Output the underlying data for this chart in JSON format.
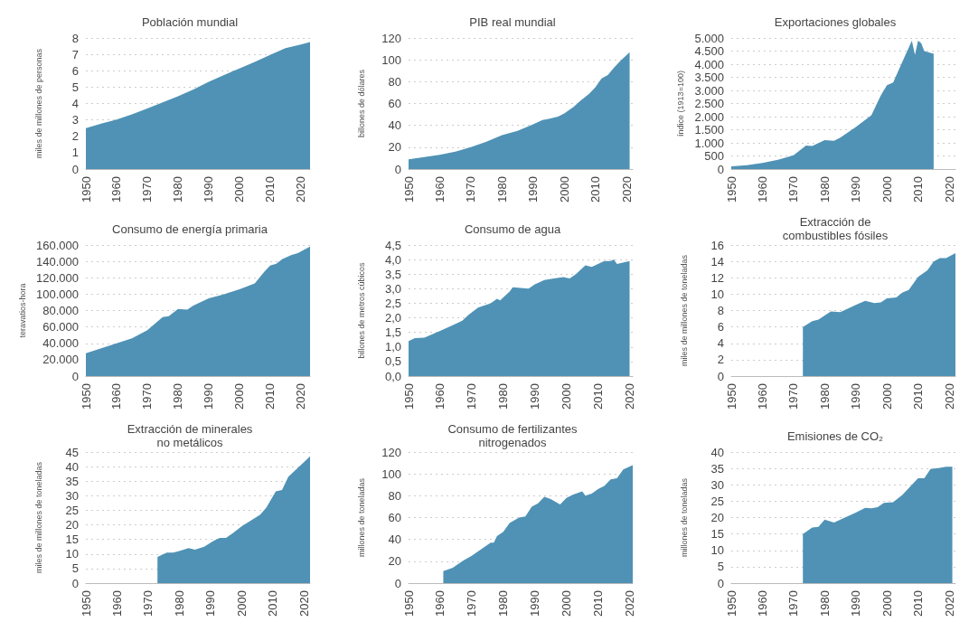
{
  "chart_data": [
    {
      "type": "area",
      "title": "Población mundial",
      "ylabel": "miles de millones de personas",
      "color": "#4f92b5",
      "grid": "y",
      "x": [
        1950,
        1955,
        1960,
        1965,
        1970,
        1975,
        1980,
        1985,
        1990,
        1995,
        2000,
        2005,
        2010,
        2015,
        2020,
        2023
      ],
      "values": [
        2.5,
        2.77,
        3.02,
        3.34,
        3.7,
        4.07,
        4.44,
        4.86,
        5.33,
        5.74,
        6.14,
        6.54,
        6.96,
        7.38,
        7.6,
        7.75
      ],
      "xlim": [
        1950,
        2023
      ],
      "xticks": [
        1950,
        1960,
        1970,
        1980,
        1990,
        2000,
        2010,
        2020
      ],
      "ylim": [
        0,
        8
      ],
      "yticks": [
        0,
        1,
        2,
        3,
        4,
        5,
        6,
        7,
        8
      ]
    },
    {
      "type": "area",
      "title": "PIB real mundial",
      "ylabel": "billones de dólares",
      "color": "#4f92b5",
      "grid": "y",
      "x": [
        1950,
        1955,
        1960,
        1965,
        1970,
        1975,
        1980,
        1985,
        1990,
        1993,
        1995,
        1998,
        2000,
        2003,
        2005,
        2008,
        2010,
        2012,
        2014,
        2016,
        2018,
        2021
      ],
      "values": [
        9,
        11,
        13,
        16,
        20,
        25,
        31,
        35,
        41,
        45,
        46,
        48,
        51,
        57,
        62,
        69,
        75,
        83,
        86,
        93,
        99,
        107
      ],
      "xlim": [
        1950,
        2022
      ],
      "xticks": [
        1950,
        1960,
        1970,
        1980,
        1990,
        2000,
        2010,
        2020
      ],
      "ylim": [
        0,
        120
      ],
      "yticks": [
        0,
        20,
        40,
        60,
        80,
        100,
        120
      ]
    },
    {
      "type": "area",
      "title": "Exportaciones globales",
      "ylabel": "índice (1913=100)",
      "color": "#4f92b5",
      "grid": "y",
      "x": [
        1950,
        1955,
        1960,
        1965,
        1970,
        1974,
        1976,
        1980,
        1983,
        1985,
        1990,
        1995,
        1998,
        2000,
        2002,
        2005,
        2008,
        2009,
        2010,
        2011,
        2012,
        2015
      ],
      "values": [
        100,
        150,
        230,
        350,
        530,
        900,
        880,
        1100,
        1080,
        1200,
        1600,
        2050,
        2800,
        3200,
        3300,
        4100,
        4900,
        4350,
        4900,
        4800,
        4500,
        4400
      ],
      "xlim": [
        1950,
        2022
      ],
      "xticks": [
        1950,
        1960,
        1970,
        1980,
        1990,
        2000,
        2010,
        2020
      ],
      "ylim": [
        0,
        5000
      ],
      "yticks": [
        0,
        500,
        {
          "value": 1000,
          "label": "1.000"
        },
        {
          "value": 1500,
          "label": "1.500"
        },
        {
          "value": 2000,
          "label": "2.000"
        },
        {
          "value": 2500,
          "label": "2.500"
        },
        {
          "value": 3000,
          "label": "3.000"
        },
        {
          "value": 3500,
          "label": "3.500"
        },
        {
          "value": 4000,
          "label": "4.000"
        },
        {
          "value": 4500,
          "label": "4.500"
        },
        {
          "value": 5000,
          "label": "5.000"
        }
      ]
    },
    {
      "type": "area",
      "title": "Consumo de energía primaria",
      "ylabel": "teravatios-hora",
      "color": "#4f92b5",
      "grid": "y",
      "x": [
        1950,
        1955,
        1960,
        1965,
        1970,
        1975,
        1977,
        1980,
        1983,
        1985,
        1990,
        1995,
        2000,
        2005,
        2008,
        2010,
        2012,
        2014,
        2017,
        2019,
        2023
      ],
      "values": [
        28000,
        34000,
        40000,
        46000,
        56000,
        72000,
        73000,
        82000,
        81000,
        86000,
        95000,
        100000,
        106000,
        113000,
        127000,
        135000,
        137000,
        143000,
        148000,
        150000,
        158000
      ],
      "xlim": [
        1950,
        2023
      ],
      "xticks": [
        1950,
        1960,
        1970,
        1980,
        1990,
        2000,
        2010,
        2020
      ],
      "ylim": [
        0,
        160000
      ],
      "yticks": [
        0,
        {
          "value": 20000,
          "label": "20.000"
        },
        {
          "value": 40000,
          "label": "40.000"
        },
        {
          "value": 60000,
          "label": "60.000"
        },
        {
          "value": 80000,
          "label": "80.000"
        },
        {
          "value": 100000,
          "label": "100.000"
        },
        {
          "value": 120000,
          "label": "120.000"
        },
        {
          "value": 140000,
          "label": "140.000"
        },
        {
          "value": 160000,
          "label": "160.000"
        }
      ]
    },
    {
      "type": "area",
      "title": "Consumo de agua",
      "ylabel": "billones de metros cúbicos",
      "color": "#4f92b5",
      "grid": "y",
      "x": [
        1950,
        1952,
        1955,
        1960,
        1963,
        1967,
        1969,
        1972,
        1976,
        1978,
        1979,
        1982,
        1983,
        1988,
        1990,
        1993,
        1996,
        1999,
        2001,
        2003,
        2006,
        2008,
        2010,
        2012,
        2014,
        2015,
        2016,
        2020
      ],
      "values": [
        1.2,
        1.3,
        1.32,
        1.55,
        1.7,
        1.9,
        2.1,
        2.35,
        2.5,
        2.65,
        2.6,
        2.9,
        3.05,
        3.0,
        3.15,
        3.3,
        3.35,
        3.4,
        3.35,
        3.5,
        3.8,
        3.75,
        3.85,
        3.95,
        3.95,
        4.0,
        3.85,
        3.95
      ],
      "xlim": [
        1950,
        2021
      ],
      "xticks": [
        1950,
        1960,
        1970,
        1980,
        1990,
        2000,
        2010,
        2020
      ],
      "ylim": [
        0,
        4.5
      ],
      "yticks": [
        {
          "value": 0,
          "label": "0,0"
        },
        {
          "value": 0.5,
          "label": "0,5"
        },
        {
          "value": 1,
          "label": "1,0"
        },
        {
          "value": 1.5,
          "label": "1,5"
        },
        {
          "value": 2,
          "label": "2,0"
        },
        {
          "value": 2.5,
          "label": "2,5"
        },
        {
          "value": 3,
          "label": "3,0"
        },
        {
          "value": 3.5,
          "label": "3,5"
        },
        {
          "value": 4,
          "label": "4,0"
        },
        {
          "value": 4.5,
          "label": "4,5"
        }
      ]
    },
    {
      "type": "area",
      "title": "Extracción de\ncombustibles fósiles",
      "ylabel": "miles de millones de toneladas",
      "color": "#4f92b5",
      "grid": "y",
      "x": [
        1973,
        1976,
        1978,
        1982,
        1985,
        1990,
        1993,
        1996,
        1998,
        2000,
        2003,
        2005,
        2007,
        2010,
        2013,
        2015,
        2017,
        2019,
        2022
      ],
      "values": [
        6.0,
        6.7,
        6.9,
        7.9,
        7.8,
        8.7,
        9.2,
        8.9,
        9.0,
        9.5,
        9.6,
        10.2,
        10.5,
        12.1,
        12.9,
        14.0,
        14.4,
        14.4,
        15.0
      ],
      "xlim": [
        1950,
        2022
      ],
      "xticks": [
        1950,
        1960,
        1970,
        1980,
        1990,
        2000,
        2010,
        2020
      ],
      "ylim": [
        0,
        16
      ],
      "yticks": [
        0,
        2,
        4,
        6,
        8,
        10,
        12,
        14,
        16
      ]
    },
    {
      "type": "area",
      "title": "Extracción de minerales\nno metálicos",
      "ylabel": "miles de millones de toneladas",
      "color": "#4f92b5",
      "grid": "y",
      "x": [
        1973,
        1976,
        1978,
        1980,
        1983,
        1985,
        1988,
        1991,
        1993,
        1995,
        1997,
        2000,
        2003,
        2006,
        2008,
        2011,
        2013,
        2015,
        2018,
        2022
      ],
      "values": [
        9,
        10.5,
        10.5,
        11,
        12,
        11.5,
        12.5,
        14.5,
        15.5,
        15.5,
        17,
        19.5,
        21.5,
        23.5,
        26,
        31.5,
        32,
        36.5,
        39.5,
        43.5
      ],
      "xlim": [
        1950,
        2022
      ],
      "xticks": [
        1950,
        1960,
        1970,
        1980,
        1990,
        2000,
        2010,
        2020
      ],
      "ylim": [
        0,
        45
      ],
      "yticks": [
        0,
        5,
        10,
        15,
        20,
        25,
        30,
        35,
        40,
        45
      ]
    },
    {
      "type": "area",
      "title": "Consumo de fertilizantes\nnitrogenados",
      "ylabel": "millones de toneladas",
      "color": "#4f92b5",
      "grid": "y",
      "x": [
        1961,
        1964,
        1967,
        1970,
        1973,
        1976,
        1977,
        1978,
        1980,
        1982,
        1985,
        1987,
        1989,
        1991,
        1993,
        1995,
        1998,
        2000,
        2002,
        2005,
        2006,
        2008,
        2010,
        2012,
        2014,
        2016,
        2018,
        2021
      ],
      "values": [
        11,
        14,
        20,
        25,
        31,
        37,
        37,
        43,
        47,
        55,
        60,
        61,
        70,
        73,
        79,
        77,
        72,
        78,
        81,
        84,
        80,
        82,
        86,
        89,
        95,
        96,
        104,
        108
      ],
      "xlim": [
        1950,
        2021
      ],
      "xticks": [
        1950,
        1960,
        1970,
        1980,
        1990,
        2000,
        2010,
        2020
      ],
      "ylim": [
        0,
        120
      ],
      "yticks": [
        0,
        20,
        40,
        60,
        80,
        100,
        120
      ]
    },
    {
      "type": "area",
      "title": "Emisiones de CO₂",
      "ylabel": "millones de toneladas",
      "color": "#4f92b5",
      "grid": "y",
      "x": [
        1973,
        1976,
        1978,
        1980,
        1983,
        1986,
        1990,
        1993,
        1995,
        1997,
        1999,
        2002,
        2005,
        2008,
        2010,
        2012,
        2014,
        2017,
        2019,
        2021
      ],
      "values": [
        15,
        17,
        17.2,
        19.4,
        18.5,
        19.8,
        21.5,
        23,
        22.8,
        23.2,
        24.5,
        24.7,
        27,
        30,
        32,
        32,
        34.8,
        35.2,
        35.5,
        35.5
      ],
      "xlim": [
        1950,
        2022
      ],
      "xticks": [
        1950,
        1960,
        1970,
        1980,
        1990,
        2000,
        2010,
        2020
      ],
      "ylim": [
        0,
        40
      ],
      "yticks": [
        0,
        5,
        10,
        15,
        20,
        25,
        30,
        35,
        40
      ]
    }
  ]
}
